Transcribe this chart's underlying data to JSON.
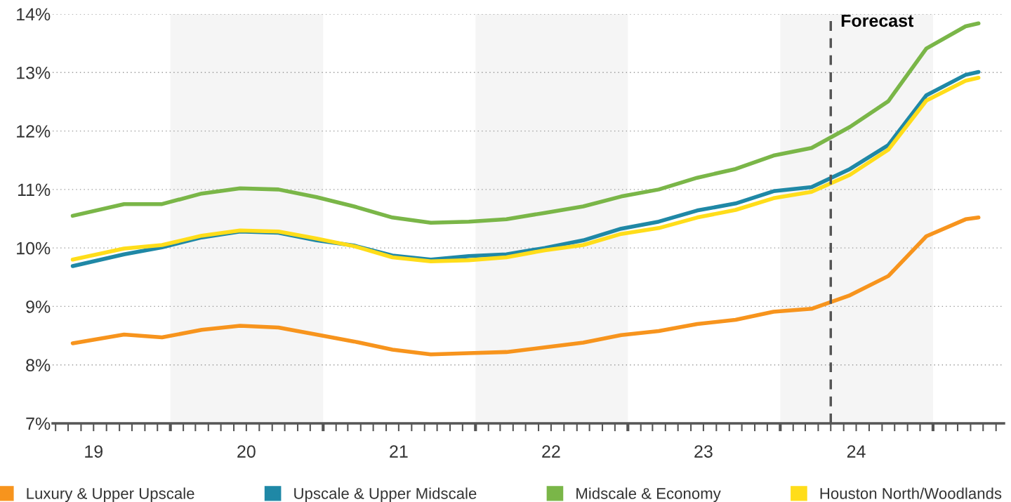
{
  "chart_data": {
    "type": "line",
    "x": [
      "2019-05-12",
      "2019-09-12",
      "2019-12-12",
      "2020-03-16",
      "2020-06-16",
      "2020-09-16",
      "2020-12-16",
      "2021-03-16",
      "2021-06-16",
      "2021-09-16",
      "2021-12-16",
      "2022-03-16",
      "2022-06-16",
      "2022-09-16",
      "2022-12-16",
      "2023-03-16",
      "2023-06-16",
      "2023-09-16",
      "2023-12-16",
      "2024-03-16",
      "2024-06-16",
      "2024-09-16",
      "2024-12-16",
      "2025-03-20",
      "2025-04-20"
    ],
    "series": [
      {
        "name": "Luxury & Upper Upscale",
        "color": "#f7941d",
        "values": [
          8.37,
          8.52,
          8.47,
          8.6,
          8.67,
          8.64,
          8.52,
          8.4,
          8.26,
          8.18,
          8.2,
          8.22,
          8.3,
          8.38,
          8.51,
          8.58,
          8.7,
          8.77,
          8.91,
          8.96,
          9.19,
          9.52,
          10.2,
          10.49,
          10.52
        ]
      },
      {
        "name": "Upscale & Upper Midscale",
        "color": "#1f88a6",
        "values": [
          9.69,
          9.89,
          10.01,
          10.18,
          10.28,
          10.26,
          10.13,
          10.04,
          9.87,
          9.8,
          9.86,
          9.89,
          10.0,
          10.13,
          10.33,
          10.45,
          10.64,
          10.76,
          10.97,
          11.04,
          11.35,
          11.76,
          12.61,
          12.96,
          13.01
        ]
      },
      {
        "name": "Midscale & Economy",
        "color": "#7ab648",
        "values": [
          10.55,
          10.75,
          10.75,
          10.93,
          11.02,
          11.0,
          10.87,
          10.71,
          10.52,
          10.43,
          10.45,
          10.49,
          10.6,
          10.71,
          10.88,
          11.0,
          11.2,
          11.35,
          11.58,
          11.71,
          12.07,
          12.51,
          13.41,
          13.79,
          13.84
        ]
      },
      {
        "name": "Houston North/Woodlands",
        "color": "#ffdd1a",
        "values": [
          9.8,
          9.99,
          10.05,
          10.21,
          10.3,
          10.28,
          10.16,
          10.03,
          9.84,
          9.77,
          9.79,
          9.84,
          9.96,
          10.05,
          10.24,
          10.34,
          10.52,
          10.65,
          10.85,
          10.96,
          11.25,
          11.68,
          12.52,
          12.86,
          12.91
        ]
      }
    ],
    "ylim": [
      7,
      14
    ],
    "yticks": [
      {
        "value": 7,
        "label": "7%"
      },
      {
        "value": 8,
        "label": "8%"
      },
      {
        "value": 9,
        "label": "9%"
      },
      {
        "value": 10,
        "label": "10%"
      },
      {
        "value": 11,
        "label": "11%"
      },
      {
        "value": 12,
        "label": "12%"
      },
      {
        "value": 13,
        "label": "13%"
      },
      {
        "value": 14,
        "label": "14%"
      }
    ],
    "xlim": [
      "2019-03-25",
      "2025-06-20"
    ],
    "xticks": [
      {
        "value": "2019-04",
        "label": null
      },
      {
        "value": "2019-05",
        "label": null
      },
      {
        "value": "2019-06",
        "label": null
      },
      {
        "value": "2019-07",
        "label": "19"
      },
      {
        "value": "2019-08",
        "label": null
      },
      {
        "value": "2019-09",
        "label": null
      },
      {
        "value": "2019-10",
        "label": null
      },
      {
        "value": "2019-11",
        "label": null
      },
      {
        "value": "2019-12",
        "label": null
      },
      {
        "value": "2020-01",
        "label": null
      },
      {
        "value": "2020-02",
        "label": null
      },
      {
        "value": "2020-03",
        "label": null
      },
      {
        "value": "2020-04",
        "label": null
      },
      {
        "value": "2020-05",
        "label": null
      },
      {
        "value": "2020-06",
        "label": null
      },
      {
        "value": "2020-07",
        "label": "20"
      },
      {
        "value": "2020-08",
        "label": null
      },
      {
        "value": "2020-09",
        "label": null
      },
      {
        "value": "2020-10",
        "label": null
      },
      {
        "value": "2020-11",
        "label": null
      },
      {
        "value": "2020-12",
        "label": null
      },
      {
        "value": "2021-01",
        "label": null
      },
      {
        "value": "2021-02",
        "label": null
      },
      {
        "value": "2021-03",
        "label": null
      },
      {
        "value": "2021-04",
        "label": null
      },
      {
        "value": "2021-05",
        "label": null
      },
      {
        "value": "2021-06",
        "label": null
      },
      {
        "value": "2021-07",
        "label": "21"
      },
      {
        "value": "2021-08",
        "label": null
      },
      {
        "value": "2021-09",
        "label": null
      },
      {
        "value": "2021-10",
        "label": null
      },
      {
        "value": "2021-11",
        "label": null
      },
      {
        "value": "2021-12",
        "label": null
      },
      {
        "value": "2022-01",
        "label": null
      },
      {
        "value": "2022-02",
        "label": null
      },
      {
        "value": "2022-03",
        "label": null
      },
      {
        "value": "2022-04",
        "label": null
      },
      {
        "value": "2022-05",
        "label": null
      },
      {
        "value": "2022-06",
        "label": null
      },
      {
        "value": "2022-07",
        "label": "22"
      },
      {
        "value": "2022-08",
        "label": null
      },
      {
        "value": "2022-09",
        "label": null
      },
      {
        "value": "2022-10",
        "label": null
      },
      {
        "value": "2022-11",
        "label": null
      },
      {
        "value": "2022-12",
        "label": null
      },
      {
        "value": "2023-01",
        "label": null
      },
      {
        "value": "2023-02",
        "label": null
      },
      {
        "value": "2023-03",
        "label": null
      },
      {
        "value": "2023-04",
        "label": null
      },
      {
        "value": "2023-05",
        "label": null
      },
      {
        "value": "2023-06",
        "label": null
      },
      {
        "value": "2023-07",
        "label": "23"
      },
      {
        "value": "2023-08",
        "label": null
      },
      {
        "value": "2023-09",
        "label": null
      },
      {
        "value": "2023-10",
        "label": null
      },
      {
        "value": "2023-11",
        "label": null
      },
      {
        "value": "2023-12",
        "label": null
      },
      {
        "value": "2024-01",
        "label": null
      },
      {
        "value": "2024-02",
        "label": null
      },
      {
        "value": "2024-03",
        "label": null
      },
      {
        "value": "2024-04",
        "label": null
      },
      {
        "value": "2024-05",
        "label": null
      },
      {
        "value": "2024-06",
        "label": null
      },
      {
        "value": "2024-07",
        "label": "24"
      },
      {
        "value": "2024-08",
        "label": null
      },
      {
        "value": "2024-09",
        "label": null
      },
      {
        "value": "2024-10",
        "label": null
      },
      {
        "value": "2024-11",
        "label": null
      },
      {
        "value": "2024-12",
        "label": null
      },
      {
        "value": "2025-01",
        "label": null
      },
      {
        "value": "2025-02",
        "label": null
      },
      {
        "value": "2025-03",
        "label": null
      },
      {
        "value": "2025-04",
        "label": null
      },
      {
        "value": "2025-05",
        "label": null
      },
      {
        "value": "2025-06",
        "label": null
      }
    ],
    "bands": [
      {
        "axis": "x",
        "from": "2020-01-01",
        "to": "2021-01-01",
        "label": null,
        "color": "#f5f5f5"
      },
      {
        "axis": "x",
        "from": "2022-01-01",
        "to": "2023-01-01",
        "label": null,
        "color": "#f5f5f5"
      },
      {
        "axis": "x",
        "from": "2024-01-01",
        "to": "2025-01-01",
        "label": null,
        "color": "#f5f5f5"
      }
    ],
    "ref_lines": [
      {
        "axis": "x",
        "value": "2024-05-01",
        "label": "Forecast",
        "color": "#555555",
        "line_style": "dashed"
      }
    ],
    "grid": "y",
    "legend": "bottom",
    "marker": "none",
    "line_style": "solid"
  }
}
